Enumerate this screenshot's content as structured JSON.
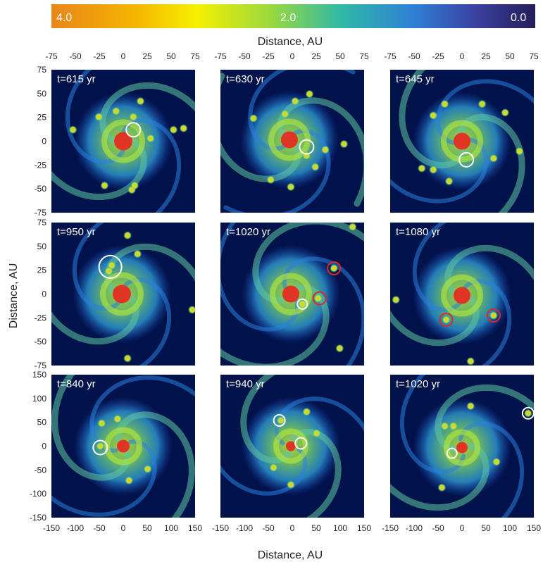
{
  "colorbar": {
    "labels": [
      "4.0",
      "2.0",
      "0.0"
    ],
    "stops": [
      "#e8861a",
      "#f5b800",
      "#f6f000",
      "#9cd93c",
      "#2fb9a6",
      "#2f7fd6",
      "#3a3f9e",
      "#241e5a"
    ]
  },
  "axes": {
    "top_label": "Distance, AU",
    "left_label": "Distance, AU",
    "bottom_label": "Distance, AU",
    "small_ticks": [
      "-75",
      "-50",
      "-25",
      "0",
      "25",
      "50",
      "75"
    ],
    "large_ticks": [
      "-150",
      "-100",
      "-50",
      "0",
      "50",
      "100",
      "150"
    ]
  },
  "panels": [
    {
      "time": "t=615 yr"
    },
    {
      "time": "t=630 yr"
    },
    {
      "time": "t=645 yr"
    },
    {
      "time": "t=950 yr"
    },
    {
      "time": "t=1020 yr"
    },
    {
      "time": "t=1080 yr"
    },
    {
      "time": "t=840 yr"
    },
    {
      "time": "t=940 yr"
    },
    {
      "time": "t=1020 yr"
    }
  ],
  "colors": {
    "background": "#02124a",
    "disk": "#2a7fe0",
    "arm": "#5fc7a0",
    "core": "#b8e83a",
    "clump": "#f3c020",
    "star": "#e03424",
    "marker_white": "#ffffff",
    "marker_red": "#e02820"
  }
}
